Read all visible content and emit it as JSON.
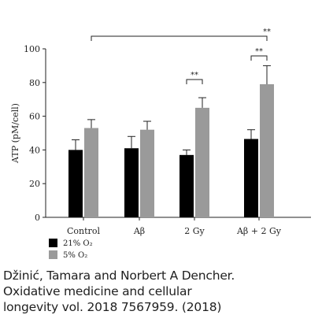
{
  "chart_data": {
    "type": "bar",
    "categories": [
      "Control",
      "Aβ",
      "2 Gy",
      "Aβ + 2 Gy"
    ],
    "series": [
      {
        "name": "21% O₂",
        "color": "#000000",
        "values": [
          40,
          41,
          37,
          46.5
        ],
        "errors": [
          6,
          7,
          3,
          5.5
        ]
      },
      {
        "name": "5% O₂",
        "color": "#9a9a9a",
        "values": [
          53,
          52,
          65,
          79
        ],
        "errors": [
          5,
          5,
          6,
          11
        ]
      }
    ],
    "ylabel": "ATP (pM/cell)",
    "ylim": [
      0,
      100
    ],
    "yticks": [
      0,
      20,
      40,
      60,
      80,
      100
    ],
    "legend_position": "bottom-left",
    "grid": false,
    "significance": [
      {
        "label": "**",
        "from": "2 Gy / 21% O₂",
        "to": "2 Gy / 5% O₂"
      },
      {
        "label": "**",
        "from": "Aβ + 2 Gy / 21% O₂",
        "to": "Aβ + 2 Gy / 5% O₂"
      },
      {
        "label": "**",
        "from": "Control / 5% O₂",
        "to": "Aβ + 2 Gy / 5% O₂"
      }
    ]
  },
  "caption": {
    "lines": [
      "Džinić, Tamara and Norbert A Dencher.",
      "Oxidative medicine and cellular",
      "longevity vol. 2018 7567959. (2018)"
    ]
  }
}
